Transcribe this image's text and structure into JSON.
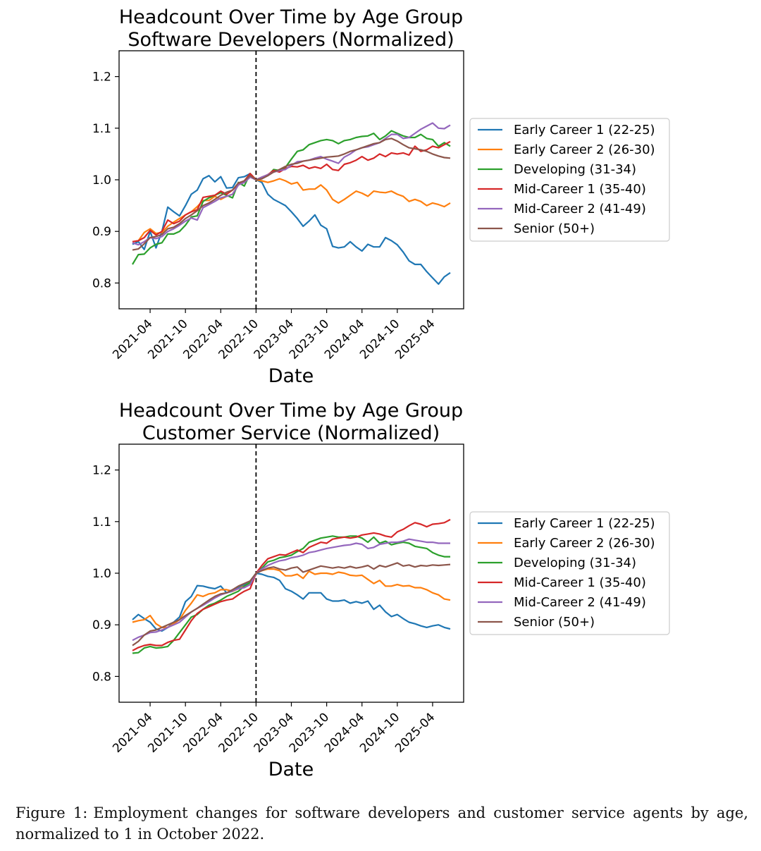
{
  "caption": {
    "label": "Figure 1:",
    "text": "Employment changes for software developers and customer service agents by age, normalized to 1 in October 2022."
  },
  "chart_data": [
    {
      "type": "line",
      "title": "Headcount Over Time by Age Group",
      "subtitle": "Software Developers (Normalized)",
      "xlabel": "Date",
      "ylabel": "",
      "x": [
        "2021-01",
        "2021-02",
        "2021-03",
        "2021-04",
        "2021-05",
        "2021-06",
        "2021-07",
        "2021-08",
        "2021-09",
        "2021-10",
        "2021-11",
        "2021-12",
        "2022-01",
        "2022-02",
        "2022-03",
        "2022-04",
        "2022-05",
        "2022-06",
        "2022-07",
        "2022-08",
        "2022-09",
        "2022-10",
        "2022-11",
        "2022-12",
        "2023-01",
        "2023-02",
        "2023-03",
        "2023-04",
        "2023-05",
        "2023-06",
        "2023-07",
        "2023-08",
        "2023-09",
        "2023-10",
        "2023-11",
        "2023-12",
        "2024-01",
        "2024-02",
        "2024-03",
        "2024-04",
        "2024-05",
        "2024-06",
        "2024-07",
        "2024-08",
        "2024-09",
        "2024-10",
        "2024-11",
        "2024-12",
        "2025-01",
        "2025-02",
        "2025-03",
        "2025-04",
        "2025-05",
        "2025-06",
        "2025-07"
      ],
      "x_ticks": [
        "2021-04",
        "2021-10",
        "2022-04",
        "2022-10",
        "2023-04",
        "2023-10",
        "2024-04",
        "2024-10",
        "2025-04"
      ],
      "y_ticks": [
        0.8,
        0.9,
        1.0,
        1.1,
        1.2
      ],
      "ylim": [
        0.75,
        1.25
      ],
      "reference_line": {
        "x": "2022-10",
        "style": "dashed"
      },
      "legend_position": "right",
      "series": [
        {
          "name": "Early Career 1 (22-25)",
          "color": "#1f77b4",
          "values": [
            0.875,
            0.88,
            0.865,
            0.9,
            0.868,
            0.9,
            0.947,
            0.938,
            0.93,
            0.95,
            0.972,
            0.98,
            1.002,
            1.008,
            0.996,
            1.006,
            0.984,
            0.985,
            1.004,
            1.006,
            1.012,
            1.0,
            0.995,
            0.972,
            0.962,
            0.956,
            0.95,
            0.938,
            0.925,
            0.91,
            0.92,
            0.932,
            0.912,
            0.905,
            0.871,
            0.868,
            0.87,
            0.88,
            0.87,
            0.862,
            0.875,
            0.87,
            0.87,
            0.888,
            0.882,
            0.874,
            0.86,
            0.843,
            0.836,
            0.836,
            0.822,
            0.81,
            0.798,
            0.812,
            0.82
          ]
        },
        {
          "name": "Early Career 2 (26-30)",
          "color": "#ff7f0e",
          "values": [
            0.88,
            0.882,
            0.898,
            0.905,
            0.896,
            0.898,
            0.91,
            0.918,
            0.925,
            0.932,
            0.938,
            0.948,
            0.96,
            0.96,
            0.968,
            0.962,
            0.968,
            0.972,
            0.99,
            0.995,
            1.008,
            1.0,
            0.998,
            0.995,
            0.998,
            1.002,
            0.998,
            0.992,
            0.995,
            0.98,
            0.982,
            0.982,
            0.99,
            0.98,
            0.962,
            0.955,
            0.962,
            0.97,
            0.978,
            0.974,
            0.968,
            0.978,
            0.976,
            0.975,
            0.978,
            0.972,
            0.968,
            0.958,
            0.962,
            0.958,
            0.95,
            0.955,
            0.952,
            0.948,
            0.955
          ]
        },
        {
          "name": "Developing (31-34)",
          "color": "#2ca02c",
          "values": [
            0.836,
            0.855,
            0.856,
            0.868,
            0.875,
            0.878,
            0.895,
            0.895,
            0.9,
            0.912,
            0.928,
            0.93,
            0.958,
            0.965,
            0.97,
            0.975,
            0.97,
            0.965,
            0.995,
            0.988,
            1.012,
            1.0,
            1.005,
            1.008,
            1.02,
            1.018,
            1.024,
            1.04,
            1.055,
            1.058,
            1.068,
            1.072,
            1.076,
            1.078,
            1.076,
            1.07,
            1.076,
            1.078,
            1.082,
            1.084,
            1.085,
            1.09,
            1.078,
            1.085,
            1.095,
            1.09,
            1.085,
            1.082,
            1.082,
            1.088,
            1.08,
            1.078,
            1.065,
            1.072,
            1.065
          ]
        },
        {
          "name": "Mid-Career 1 (35-40)",
          "color": "#d62728",
          "values": [
            0.88,
            0.882,
            0.888,
            0.902,
            0.893,
            0.9,
            0.922,
            0.915,
            0.92,
            0.932,
            0.938,
            0.942,
            0.966,
            0.968,
            0.97,
            0.978,
            0.972,
            0.98,
            0.992,
            0.998,
            1.012,
            1.0,
            1.005,
            1.01,
            1.018,
            1.015,
            1.022,
            1.026,
            1.025,
            1.028,
            1.022,
            1.025,
            1.022,
            1.03,
            1.02,
            1.018,
            1.03,
            1.033,
            1.038,
            1.045,
            1.038,
            1.042,
            1.05,
            1.045,
            1.052,
            1.05,
            1.052,
            1.048,
            1.065,
            1.055,
            1.058,
            1.065,
            1.062,
            1.068,
            1.074
          ]
        },
        {
          "name": "Mid-Career 2 (41-49)",
          "color": "#9467bd",
          "values": [
            0.878,
            0.874,
            0.88,
            0.888,
            0.886,
            0.89,
            0.9,
            0.905,
            0.912,
            0.92,
            0.926,
            0.922,
            0.946,
            0.952,
            0.958,
            0.965,
            0.968,
            0.972,
            0.99,
            0.995,
            1.005,
            1.0,
            1.005,
            1.01,
            1.015,
            1.018,
            1.02,
            1.028,
            1.035,
            1.036,
            1.038,
            1.042,
            1.045,
            1.04,
            1.036,
            1.032,
            1.044,
            1.05,
            1.058,
            1.062,
            1.064,
            1.068,
            1.072,
            1.08,
            1.088,
            1.088,
            1.08,
            1.082,
            1.09,
            1.098,
            1.104,
            1.11,
            1.1,
            1.099,
            1.106
          ]
        },
        {
          "name": "Senior (50+)",
          "color": "#8c564b",
          "values": [
            0.864,
            0.866,
            0.876,
            0.888,
            0.89,
            0.894,
            0.905,
            0.908,
            0.915,
            0.925,
            0.932,
            0.94,
            0.95,
            0.955,
            0.962,
            0.97,
            0.976,
            0.98,
            0.994,
            0.998,
            1.008,
            1.0,
            1.002,
            1.008,
            1.015,
            1.02,
            1.026,
            1.03,
            1.032,
            1.036,
            1.038,
            1.04,
            1.042,
            1.044,
            1.045,
            1.046,
            1.05,
            1.055,
            1.058,
            1.062,
            1.066,
            1.07,
            1.072,
            1.078,
            1.08,
            1.075,
            1.068,
            1.062,
            1.06,
            1.058,
            1.055,
            1.05,
            1.046,
            1.043,
            1.042
          ]
        }
      ]
    },
    {
      "type": "line",
      "title": "Headcount Over Time by Age Group",
      "subtitle": "Customer Service (Normalized)",
      "xlabel": "Date",
      "ylabel": "",
      "x": [
        "2021-01",
        "2021-02",
        "2021-03",
        "2021-04",
        "2021-05",
        "2021-06",
        "2021-07",
        "2021-08",
        "2021-09",
        "2021-10",
        "2021-11",
        "2021-12",
        "2022-01",
        "2022-02",
        "2022-03",
        "2022-04",
        "2022-05",
        "2022-06",
        "2022-07",
        "2022-08",
        "2022-09",
        "2022-10",
        "2022-11",
        "2022-12",
        "2023-01",
        "2023-02",
        "2023-03",
        "2023-04",
        "2023-05",
        "2023-06",
        "2023-07",
        "2023-08",
        "2023-09",
        "2023-10",
        "2023-11",
        "2023-12",
        "2024-01",
        "2024-02",
        "2024-03",
        "2024-04",
        "2024-05",
        "2024-06",
        "2024-07",
        "2024-08",
        "2024-09",
        "2024-10",
        "2024-11",
        "2024-12",
        "2025-01",
        "2025-02",
        "2025-03",
        "2025-04",
        "2025-05",
        "2025-06",
        "2025-07"
      ],
      "x_ticks": [
        "2021-04",
        "2021-10",
        "2022-04",
        "2022-10",
        "2023-04",
        "2023-10",
        "2024-04",
        "2024-10",
        "2025-04"
      ],
      "y_ticks": [
        0.8,
        0.9,
        1.0,
        1.1,
        1.2
      ],
      "ylim": [
        0.75,
        1.25
      ],
      "reference_line": {
        "x": "2022-10",
        "style": "dashed"
      },
      "legend_position": "right",
      "series": [
        {
          "name": "Early Career 1 (22-25)",
          "color": "#1f77b4",
          "values": [
            0.91,
            0.92,
            0.912,
            0.905,
            0.892,
            0.888,
            0.895,
            0.905,
            0.915,
            0.945,
            0.955,
            0.976,
            0.975,
            0.972,
            0.97,
            0.975,
            0.962,
            0.965,
            0.972,
            0.978,
            0.985,
            1.0,
            0.998,
            0.994,
            0.992,
            0.986,
            0.97,
            0.965,
            0.958,
            0.95,
            0.962,
            0.962,
            0.962,
            0.95,
            0.946,
            0.946,
            0.948,
            0.942,
            0.945,
            0.942,
            0.946,
            0.93,
            0.938,
            0.925,
            0.916,
            0.92,
            0.912,
            0.905,
            0.902,
            0.898,
            0.895,
            0.898,
            0.9,
            0.895,
            0.892
          ]
        },
        {
          "name": "Early Career 2 (26-30)",
          "color": "#ff7f0e",
          "values": [
            0.905,
            0.908,
            0.91,
            0.918,
            0.902,
            0.895,
            0.895,
            0.902,
            0.91,
            0.928,
            0.942,
            0.958,
            0.955,
            0.96,
            0.962,
            0.968,
            0.968,
            0.965,
            0.97,
            0.975,
            0.98,
            1.0,
            1.005,
            1.008,
            1.008,
            1.005,
            0.995,
            0.995,
            0.998,
            0.99,
            1.004,
            0.998,
            1.0,
            1.0,
            0.998,
            1.002,
            1.0,
            0.996,
            0.995,
            0.996,
            0.988,
            0.98,
            0.986,
            0.975,
            0.975,
            0.978,
            0.975,
            0.976,
            0.972,
            0.972,
            0.968,
            0.962,
            0.958,
            0.95,
            0.948
          ]
        },
        {
          "name": "Developing (31-34)",
          "color": "#2ca02c",
          "values": [
            0.845,
            0.846,
            0.855,
            0.858,
            0.855,
            0.856,
            0.858,
            0.87,
            0.885,
            0.9,
            0.915,
            0.92,
            0.93,
            0.938,
            0.942,
            0.948,
            0.955,
            0.96,
            0.965,
            0.975,
            0.982,
            1.0,
            1.01,
            1.022,
            1.025,
            1.03,
            1.032,
            1.035,
            1.042,
            1.048,
            1.06,
            1.064,
            1.068,
            1.07,
            1.072,
            1.07,
            1.07,
            1.072,
            1.072,
            1.068,
            1.06,
            1.07,
            1.058,
            1.062,
            1.055,
            1.058,
            1.06,
            1.058,
            1.052,
            1.05,
            1.048,
            1.04,
            1.035,
            1.032,
            1.032
          ]
        },
        {
          "name": "Mid-Career 1 (35-40)",
          "color": "#d62728",
          "values": [
            0.85,
            0.856,
            0.86,
            0.862,
            0.86,
            0.86,
            0.866,
            0.87,
            0.872,
            0.89,
            0.908,
            0.922,
            0.93,
            0.935,
            0.94,
            0.945,
            0.948,
            0.95,
            0.958,
            0.965,
            0.97,
            1.0,
            1.015,
            1.028,
            1.032,
            1.036,
            1.035,
            1.04,
            1.045,
            1.04,
            1.05,
            1.055,
            1.06,
            1.058,
            1.066,
            1.068,
            1.07,
            1.068,
            1.07,
            1.074,
            1.076,
            1.078,
            1.076,
            1.072,
            1.07,
            1.08,
            1.085,
            1.092,
            1.098,
            1.095,
            1.09,
            1.095,
            1.096,
            1.098,
            1.104
          ]
        },
        {
          "name": "Mid-Career 2 (41-49)",
          "color": "#9467bd",
          "values": [
            0.87,
            0.876,
            0.88,
            0.885,
            0.886,
            0.89,
            0.895,
            0.9,
            0.905,
            0.915,
            0.925,
            0.932,
            0.938,
            0.945,
            0.952,
            0.958,
            0.962,
            0.966,
            0.97,
            0.972,
            0.978,
            1.0,
            1.008,
            1.015,
            1.02,
            1.024,
            1.026,
            1.03,
            1.032,
            1.035,
            1.04,
            1.042,
            1.045,
            1.048,
            1.05,
            1.052,
            1.054,
            1.055,
            1.058,
            1.056,
            1.048,
            1.05,
            1.056,
            1.058,
            1.06,
            1.06,
            1.062,
            1.066,
            1.064,
            1.062,
            1.06,
            1.06,
            1.058,
            1.058,
            1.058
          ]
        },
        {
          "name": "Senior (50+)",
          "color": "#8c564b",
          "values": [
            0.86,
            0.868,
            0.88,
            0.888,
            0.89,
            0.895,
            0.9,
            0.905,
            0.91,
            0.918,
            0.925,
            0.932,
            0.94,
            0.948,
            0.955,
            0.96,
            0.962,
            0.968,
            0.975,
            0.98,
            0.985,
            1.0,
            1.005,
            1.01,
            1.012,
            1.008,
            1.006,
            1.01,
            1.012,
            1.002,
            1.006,
            1.01,
            1.014,
            1.012,
            1.01,
            1.012,
            1.01,
            1.013,
            1.01,
            1.012,
            1.015,
            1.008,
            1.015,
            1.012,
            1.016,
            1.02,
            1.014,
            1.016,
            1.012,
            1.015,
            1.014,
            1.016,
            1.015,
            1.016,
            1.017
          ]
        }
      ]
    }
  ]
}
